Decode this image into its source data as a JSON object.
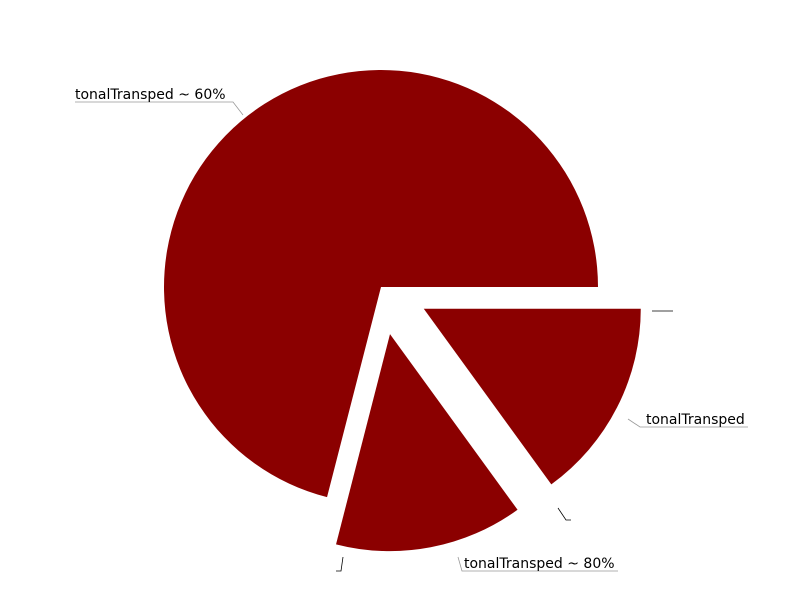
{
  "chart_data": {
    "type": "pie",
    "values": [
      71,
      14,
      15
    ],
    "labels": [
      "tonalTransped ~ 60%",
      "tonalTransped ~ 80%",
      "tonalTransped"
    ],
    "exploded": [
      false,
      true,
      true
    ],
    "colors": {
      "slice": "#8b0000",
      "leader": "#999999",
      "tick": "#000000"
    }
  }
}
